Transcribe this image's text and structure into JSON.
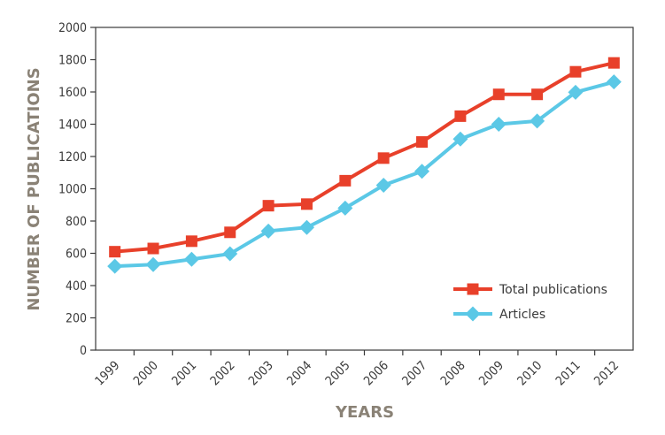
{
  "chart_data": {
    "type": "line",
    "xlabel": "YEARS",
    "ylabel": "NUMBER OF PUBLICATIONS",
    "ylim": [
      0,
      2000
    ],
    "yticks": [
      0,
      200,
      400,
      600,
      800,
      1000,
      1200,
      1400,
      1600,
      1800,
      2000
    ],
    "categories": [
      "1999",
      "2000",
      "2001",
      "2002",
      "2003",
      "2004",
      "2005",
      "2006",
      "2007",
      "2008",
      "2009",
      "2010",
      "2011",
      "2012"
    ],
    "grid": false,
    "legend_position": "bottom-right",
    "series": [
      {
        "name": "Total publications",
        "color": "#e8402a",
        "marker": "square",
        "values": [
          610,
          630,
          675,
          730,
          895,
          905,
          1050,
          1190,
          1290,
          1450,
          1585,
          1585,
          1725,
          1780
        ]
      },
      {
        "name": "Articles",
        "color": "#5bc8e6",
        "marker": "diamond",
        "values": [
          520,
          530,
          563,
          597,
          738,
          760,
          880,
          1022,
          1108,
          1308,
          1400,
          1420,
          1598,
          1662
        ]
      }
    ]
  }
}
